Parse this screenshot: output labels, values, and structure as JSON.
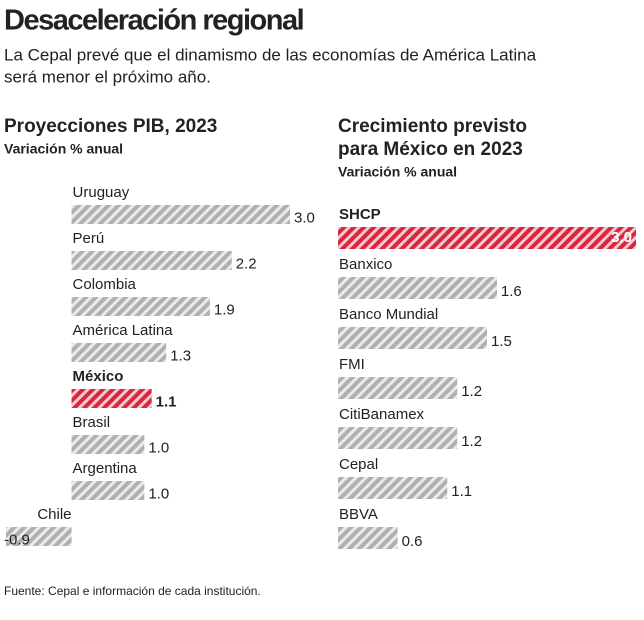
{
  "title": "Desaceleración regional",
  "subtitle": [
    "La Cepal prevé que el dinamismo de las economías de América Latina",
    "será menor el próximo año."
  ],
  "source": "Fuente: Cepal e información de cada institución.",
  "chart_data": [
    {
      "type": "bar",
      "orientation": "horizontal",
      "title": "Proyecciones PIB, 2023",
      "subtitle": "Variación % anual",
      "categories": [
        "Uruguay",
        "Perú",
        "Colombia",
        "América Latina",
        "México",
        "Brasil",
        "Argentina",
        "Chile"
      ],
      "values": [
        3.0,
        2.2,
        1.9,
        1.3,
        1.1,
        1.0,
        1.0,
        -0.9
      ],
      "value_labels": [
        "3.0",
        "2.2",
        "1.9",
        "1.3",
        "1.1",
        "1.0",
        "1.0",
        "-0.9"
      ],
      "color": "#b0b0b0",
      "colors": [
        "#b0b0b0",
        "#b0b0b0",
        "#b0b0b0",
        "#b0b0b0",
        "#d7263d",
        "#b0b0b0",
        "#b0b0b0",
        "#b0b0b0"
      ]
    },
    {
      "type": "bar",
      "orientation": "horizontal",
      "title": [
        "Crecimiento previsto",
        "para México en 2023"
      ],
      "subtitle": "Variación % anual",
      "categories": [
        "SHCP",
        "Banxico",
        "Banco Mundial",
        "FMI",
        "CitiBanamex",
        "Cepal",
        "BBVA"
      ],
      "values": [
        3.0,
        1.6,
        1.5,
        1.2,
        1.2,
        1.1,
        0.6
      ],
      "value_labels": [
        "3.0",
        "1.6",
        "1.5",
        "1.2",
        "1.2",
        "1.1",
        "0.6"
      ],
      "color": "#b0b0b0",
      "colors": [
        "#d7263d",
        "#b0b0b0",
        "#b0b0b0",
        "#b0b0b0",
        "#b0b0b0",
        "#b0b0b0",
        "#b0b0b0"
      ]
    }
  ]
}
